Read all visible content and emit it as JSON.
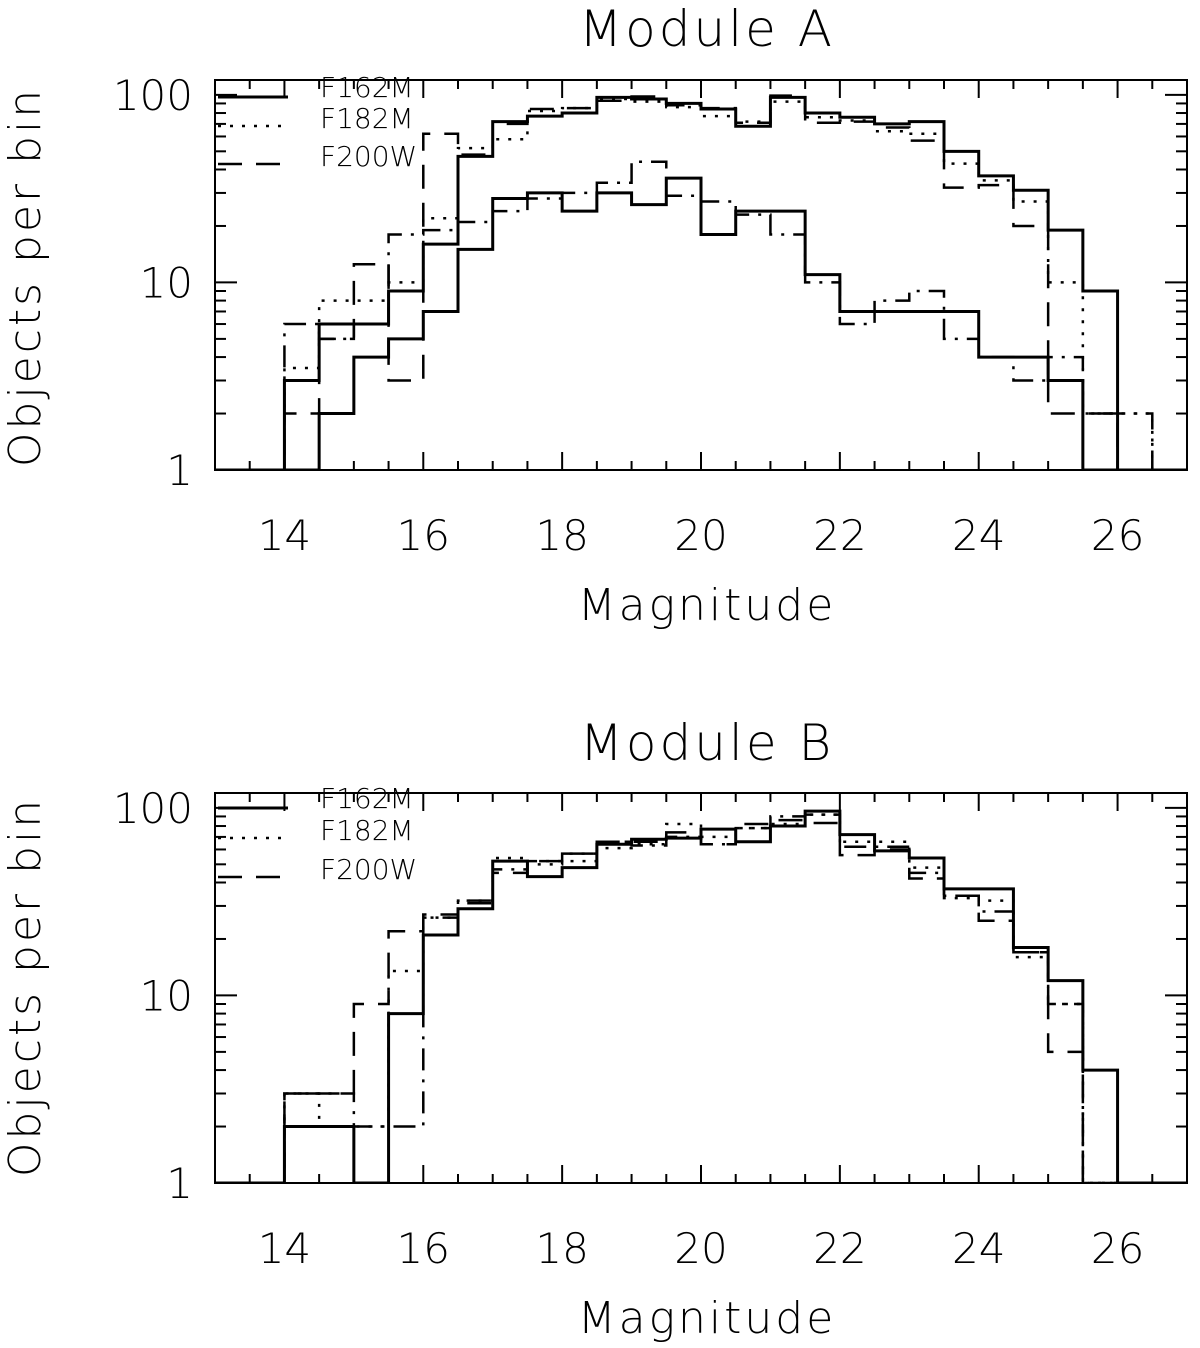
{
  "chart_data": [
    {
      "type": "line",
      "title": "Module A",
      "xlabel": "Magnitude",
      "ylabel": "Objects per bin",
      "xlim": [
        13,
        27
      ],
      "ylim": [
        1,
        120
      ],
      "yscale": "log",
      "xticks": [
        14,
        16,
        18,
        20,
        22,
        24,
        26
      ],
      "yticks": [
        1,
        10,
        100
      ],
      "bin_width": 0.5,
      "x": [
        14.0,
        14.5,
        15.0,
        15.5,
        16.0,
        16.5,
        17.0,
        17.5,
        18.0,
        18.5,
        19.0,
        19.5,
        20.0,
        20.5,
        21.0,
        21.5,
        22.0,
        22.5,
        23.0,
        23.5,
        24.0,
        24.5,
        25.0,
        25.5,
        26.0
      ],
      "legend": "top-left",
      "series": [
        {
          "name": "F162M",
          "style": "solid",
          "values": [
            3,
            6,
            6,
            9,
            16,
            47,
            72,
            77,
            80,
            97,
            95,
            90,
            84,
            68,
            97,
            80,
            76,
            70,
            72,
            50,
            37,
            31,
            19,
            9,
            1
          ]
        },
        {
          "name": "F182M",
          "style": "dotted",
          "values": [
            3.5,
            8,
            8,
            10,
            22,
            52,
            58,
            82,
            85,
            95,
            92,
            86,
            77,
            72,
            92,
            76,
            73,
            64,
            62,
            43,
            35,
            27,
            10,
            2,
            2
          ]
        },
        {
          "name": "F200W",
          "style": "dashed",
          "values": [
            2,
            5,
            12.5,
            3,
            62,
            48,
            70,
            84,
            85,
            93,
            98,
            88,
            85,
            71,
            99,
            71,
            72,
            67,
            57,
            32,
            33,
            20,
            2,
            2,
            1
          ]
        },
        {
          "name": "",
          "style": "solid",
          "values": [
            1,
            2,
            4,
            5,
            7,
            15,
            28,
            30,
            24,
            30,
            26,
            36,
            18,
            24,
            24,
            11,
            7,
            7,
            7,
            7,
            4,
            4,
            3,
            1,
            1
          ]
        },
        {
          "name": "",
          "style": "dashdot",
          "values": [
            6,
            5,
            6,
            18,
            19,
            21,
            24,
            28,
            30,
            34,
            44,
            29,
            27,
            23,
            18,
            10,
            6,
            8,
            9,
            5,
            4,
            3,
            4,
            2,
            2
          ]
        }
      ]
    },
    {
      "type": "line",
      "title": "Module B",
      "xlabel": "Magnitude",
      "ylabel": "Objects per bin",
      "xlim": [
        13,
        27
      ],
      "ylim": [
        1,
        120
      ],
      "yscale": "log",
      "xticks": [
        14,
        16,
        18,
        20,
        22,
        24,
        26
      ],
      "yticks": [
        1,
        10,
        100
      ],
      "bin_width": 0.5,
      "x": [
        14.0,
        14.5,
        15.0,
        15.5,
        16.0,
        16.5,
        17.0,
        17.5,
        18.0,
        18.5,
        19.0,
        19.5,
        20.0,
        20.5,
        21.0,
        21.5,
        22.0,
        22.5,
        23.0,
        23.5,
        24.0,
        24.5,
        25.0,
        25.5,
        26.0
      ],
      "legend": "top-left",
      "series": [
        {
          "name": "F162M",
          "style": "solid",
          "values": [
            2,
            2,
            1,
            8,
            21,
            29,
            52,
            43,
            48,
            64,
            68,
            69,
            77,
            66,
            80,
            96,
            72,
            59,
            54,
            37,
            37,
            18,
            12,
            4,
            1
          ]
        },
        {
          "name": "F182M",
          "style": "dotted",
          "values": [
            3,
            2,
            2,
            13.5,
            26,
            32,
            54,
            50,
            52,
            61,
            64,
            82,
            70,
            78,
            82,
            92,
            66,
            66,
            48,
            33,
            32,
            16,
            9,
            1,
            1
          ]
        },
        {
          "name": "F200W",
          "style": "dashed",
          "values": [
            3,
            3,
            9,
            22,
            27,
            31,
            45,
            52,
            57,
            66,
            66,
            74,
            64,
            82,
            86,
            83,
            56,
            60,
            42,
            34,
            25,
            17,
            5,
            1,
            1
          ]
        },
        {
          "name": "",
          "style": "dashdot",
          "values": [
            3,
            3,
            2,
            2,
            26,
            32,
            47,
            52,
            57,
            66,
            63,
            70,
            64,
            78,
            90,
            92,
            62,
            62,
            45,
            34,
            28,
            17,
            9,
            1,
            1
          ]
        }
      ]
    }
  ]
}
